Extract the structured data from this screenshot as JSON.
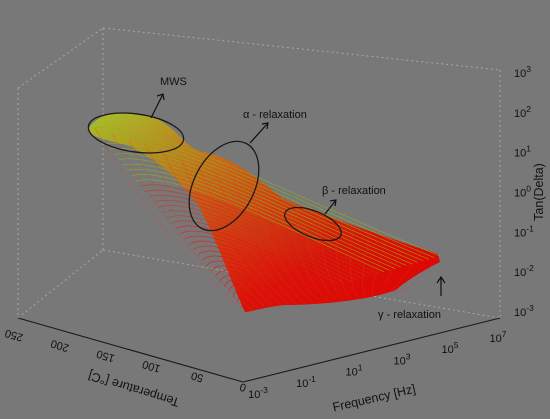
{
  "chart_data": {
    "type": "surface",
    "title": "",
    "axes": {
      "temperature": {
        "label": "Temperature [°C]",
        "range": [
          0,
          250
        ],
        "ticks": [
          "0",
          "50",
          "100",
          "150",
          "200",
          "250"
        ]
      },
      "frequency": {
        "label": "Frequency [Hz]",
        "scale": "log",
        "range_exponent": [
          -3,
          7
        ],
        "tick_base": "10",
        "tick_exponents": [
          "-3",
          "-1",
          "1",
          "3",
          "5",
          "7"
        ]
      },
      "tan_delta": {
        "label": "Tan(Delta)",
        "scale": "log",
        "range_exponent": [
          -3,
          3
        ],
        "tick_base": "10",
        "tick_exponents": [
          "-3",
          "-2",
          "-1",
          "0",
          "1",
          "2",
          "3"
        ]
      }
    },
    "annotations": [
      {
        "label": "MWS",
        "temperature": 240,
        "log_frequency": -2.5,
        "log_tan_delta": 1.8
      },
      {
        "label": "α - relaxation",
        "temperature": 160,
        "log_frequency": 0,
        "log_tan_delta": 0.2
      },
      {
        "label": "β - relaxation",
        "temperature": 70,
        "log_frequency": 3.5,
        "log_tan_delta": -1.2
      },
      {
        "label": "γ - relaxation",
        "temperature": 5,
        "log_frequency": 6.5,
        "log_tan_delta": -2.4
      }
    ],
    "colors": {
      "background": "#787878",
      "surface_low": "#e10000",
      "surface_high": "#8ec51a",
      "box": "#a6a6a6",
      "text": "#111111"
    },
    "grid": false,
    "legend": "none"
  }
}
